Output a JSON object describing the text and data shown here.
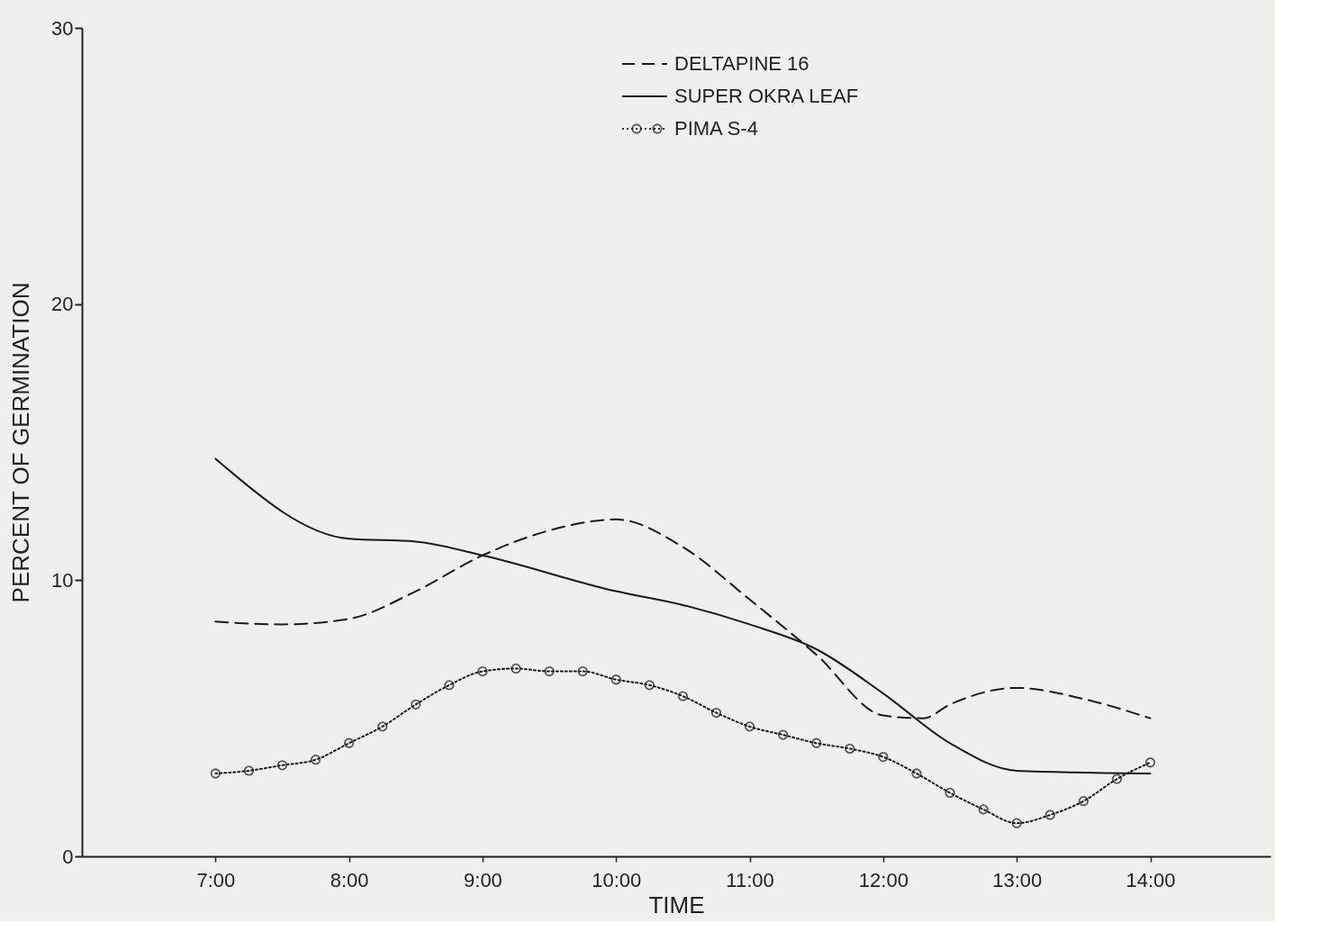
{
  "chart_data": {
    "type": "line",
    "xlabel": "TIME",
    "ylabel": "PERCENT OF GERMINATION",
    "xlim": [
      6,
      14.9
    ],
    "ylim": [
      0,
      30
    ],
    "xticks": [
      {
        "value": 7,
        "label": "7:00"
      },
      {
        "value": 8,
        "label": "8:00"
      },
      {
        "value": 9,
        "label": "9:00"
      },
      {
        "value": 10,
        "label": "10:00"
      },
      {
        "value": 11,
        "label": "11:00"
      },
      {
        "value": 12,
        "label": "12:00"
      },
      {
        "value": 13,
        "label": "13:00"
      },
      {
        "value": 14,
        "label": "14:00"
      }
    ],
    "yticks": [
      0,
      10,
      20,
      30
    ],
    "grid": false,
    "legend": "top",
    "series": [
      {
        "name": "DELTAPINE 16",
        "color": "#1a1a1a",
        "line_style": "dashed",
        "marker": "none",
        "x": [
          7,
          7.5,
          8,
          8.5,
          9,
          9.5,
          10,
          10.5,
          11,
          11.5,
          12,
          12.3,
          12.5,
          13,
          13.5,
          14
        ],
        "values": [
          8.5,
          8.4,
          8.6,
          9.6,
          10.9,
          11.8,
          12.2,
          11.2,
          9.3,
          7.3,
          5.1,
          5.0,
          5.5,
          6.1,
          5.7,
          5.0
        ]
      },
      {
        "name": "SUPER OKRA LEAF",
        "color": "#1a1a1a",
        "line_style": "solid",
        "marker": "none",
        "x": [
          7,
          8,
          8.5,
          9,
          10,
          10.5,
          11,
          11.5,
          12,
          12.5,
          13,
          14
        ],
        "values": [
          14.4,
          11.5,
          11.4,
          10.9,
          9.6,
          9.1,
          8.4,
          7.5,
          5.9,
          4.1,
          3.1,
          3.0
        ]
      },
      {
        "name": "PIMA S-4",
        "color": "#1a1a1a",
        "line_style": "dotted",
        "marker": "circle",
        "x": [
          7,
          7.25,
          7.5,
          7.75,
          8,
          8.25,
          8.5,
          8.75,
          9,
          9.25,
          9.5,
          9.75,
          10,
          10.25,
          10.5,
          10.75,
          11,
          11.25,
          11.5,
          11.75,
          12,
          12.25,
          12.5,
          12.75,
          13,
          13.25,
          13.5,
          13.75,
          14
        ],
        "values": [
          3.0,
          3.1,
          3.3,
          3.5,
          4.1,
          4.7,
          5.5,
          6.2,
          6.7,
          6.8,
          6.7,
          6.7,
          6.4,
          6.2,
          5.8,
          5.2,
          4.7,
          4.4,
          4.1,
          3.9,
          3.6,
          3.0,
          2.3,
          1.7,
          1.2,
          1.5,
          2.0,
          2.8,
          3.4
        ]
      }
    ]
  }
}
